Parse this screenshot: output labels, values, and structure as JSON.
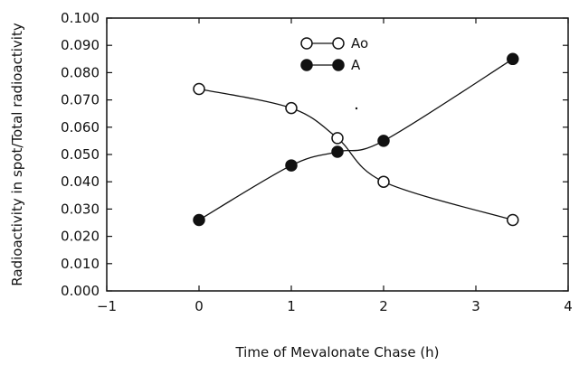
{
  "chart_data": {
    "type": "line",
    "title": "",
    "xlabel": "Time of Mevalonate Chase (h)",
    "ylabel": "Radioactivity in spot/Total radioactivity",
    "xlim": [
      -1,
      4
    ],
    "ylim": [
      0,
      0.1
    ],
    "x_ticks": [
      "−1",
      "0",
      "1",
      "2",
      "3",
      "4"
    ],
    "y_ticks": [
      "0.000",
      "0.010",
      "0.020",
      "0.030",
      "0.040",
      "0.050",
      "0.060",
      "0.070",
      "0.080",
      "0.090",
      "0.100"
    ],
    "grid": false,
    "legend_position": "top-center",
    "series": [
      {
        "name": "Ao",
        "marker": "open-circle",
        "x": [
          0,
          1,
          1.5,
          2,
          3.4
        ],
        "y": [
          0.074,
          0.067,
          0.056,
          0.04,
          0.026
        ]
      },
      {
        "name": "A",
        "marker": "filled-circle",
        "x": [
          0,
          1,
          1.5,
          2,
          3.4
        ],
        "y": [
          0.026,
          0.046,
          0.051,
          0.055,
          0.085
        ]
      }
    ]
  }
}
